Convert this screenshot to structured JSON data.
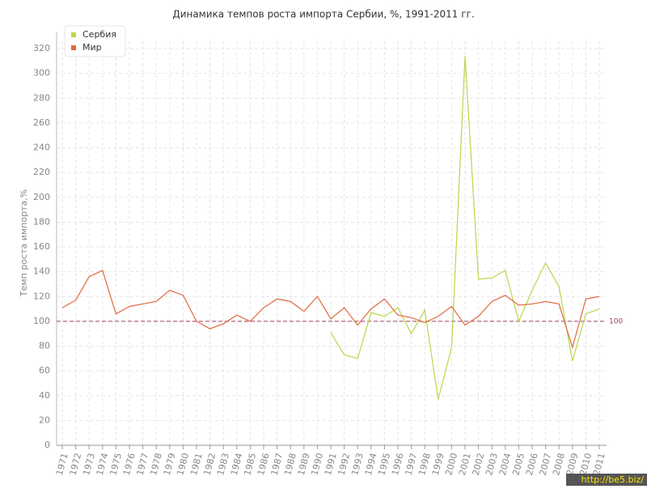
{
  "chart_data": {
    "type": "line",
    "title": "Динамика темпов роста импорта Сербии, %, 1991-2011 гг.",
    "y_label": "Темп роста импорта,%",
    "categories": [
      "1971",
      "1972",
      "1973",
      "1974",
      "1975",
      "1976",
      "1977",
      "1978",
      "1979",
      "1980",
      "1981",
      "1982",
      "1983",
      "1984",
      "1985",
      "1986",
      "1987",
      "1988",
      "1989",
      "1990",
      "1991",
      "1992",
      "1993",
      "1994",
      "1995",
      "1996",
      "1997",
      "1998",
      "1999",
      "2000",
      "2001",
      "2002",
      "2003",
      "2004",
      "2005",
      "2006",
      "2007",
      "2008",
      "2009",
      "2010",
      "2011"
    ],
    "series": [
      {
        "name": "Сербия",
        "color": "#b8d84a",
        "values": [
          null,
          null,
          null,
          null,
          null,
          null,
          null,
          null,
          null,
          null,
          null,
          null,
          null,
          null,
          null,
          null,
          null,
          null,
          null,
          null,
          91,
          73,
          70,
          107,
          104,
          111,
          90,
          109,
          37,
          79,
          314,
          134,
          135,
          141,
          100,
          125,
          147,
          128,
          68,
          106,
          110
        ]
      },
      {
        "name": "Мир",
        "color": "#e0683e",
        "values": [
          111,
          117,
          136,
          141,
          106,
          112,
          114,
          116,
          125,
          121,
          100,
          94,
          98,
          105,
          100,
          111,
          118,
          116,
          108,
          120,
          102,
          111,
          97,
          110,
          118,
          105,
          103,
          99,
          104,
          112,
          97,
          104,
          116,
          121,
          113,
          114,
          116,
          114,
          79,
          118,
          120
        ]
      }
    ],
    "ylim": [
      0,
      320
    ],
    "yticks": [
      0,
      20,
      40,
      60,
      80,
      100,
      120,
      140,
      160,
      180,
      200,
      220,
      240,
      260,
      280,
      300,
      320
    ],
    "grid": true,
    "reference_line": 100,
    "reference_color": "#a0405a",
    "legend": "top-left",
    "watermark": "http://be5.biz/"
  }
}
